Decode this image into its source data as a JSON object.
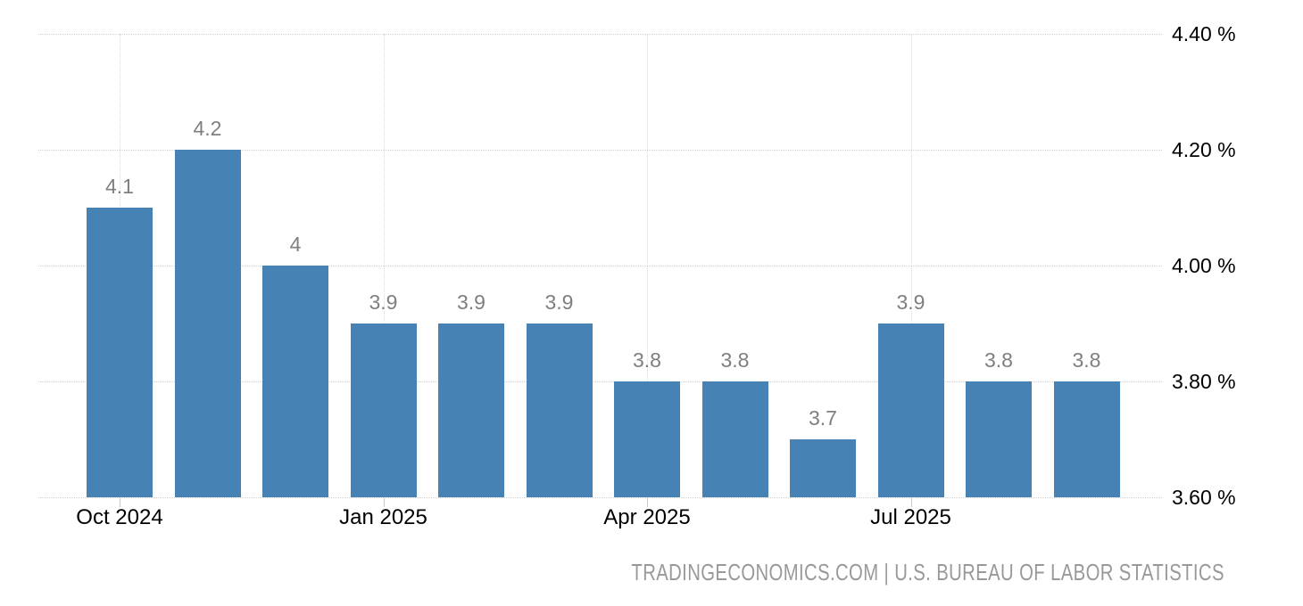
{
  "chart_data": {
    "type": "bar",
    "title": "",
    "values": [
      4.1,
      4.2,
      4,
      3.9,
      3.9,
      3.9,
      3.8,
      3.8,
      3.7,
      3.9,
      3.8,
      3.8
    ],
    "bar_labels": [
      "4.1",
      "4.2",
      "4",
      "3.9",
      "3.9",
      "3.9",
      "3.8",
      "3.8",
      "3.7",
      "3.9",
      "3.8",
      "3.8"
    ],
    "x_ticks": [
      {
        "label": "Oct 2024",
        "bar_index": 0
      },
      {
        "label": "Jan 2025",
        "bar_index": 3
      },
      {
        "label": "Apr 2025",
        "bar_index": 6
      },
      {
        "label": "Jul 2025",
        "bar_index": 9
      }
    ],
    "y_ticks": [
      {
        "label": "4.40 %",
        "value": 4.4
      },
      {
        "label": "4.20 %",
        "value": 4.2
      },
      {
        "label": "4.00 %",
        "value": 4.0
      },
      {
        "label": "3.80 %",
        "value": 3.8
      },
      {
        "label": "3.60 %",
        "value": 3.6
      }
    ],
    "ylim": [
      3.6,
      4.4
    ],
    "grid": "dotted",
    "legend": "none",
    "y_axis_side": "right",
    "bar_color": "#4682b4",
    "bar_label_color": "#7f7f7f",
    "axis_text_color": "#000000",
    "gridline_color": "#d2d2d2",
    "attribution": "TRADINGECONOMICS.COM | U.S. BUREAU OF LABOR STATISTICS",
    "attribution_color": "#999999"
  }
}
